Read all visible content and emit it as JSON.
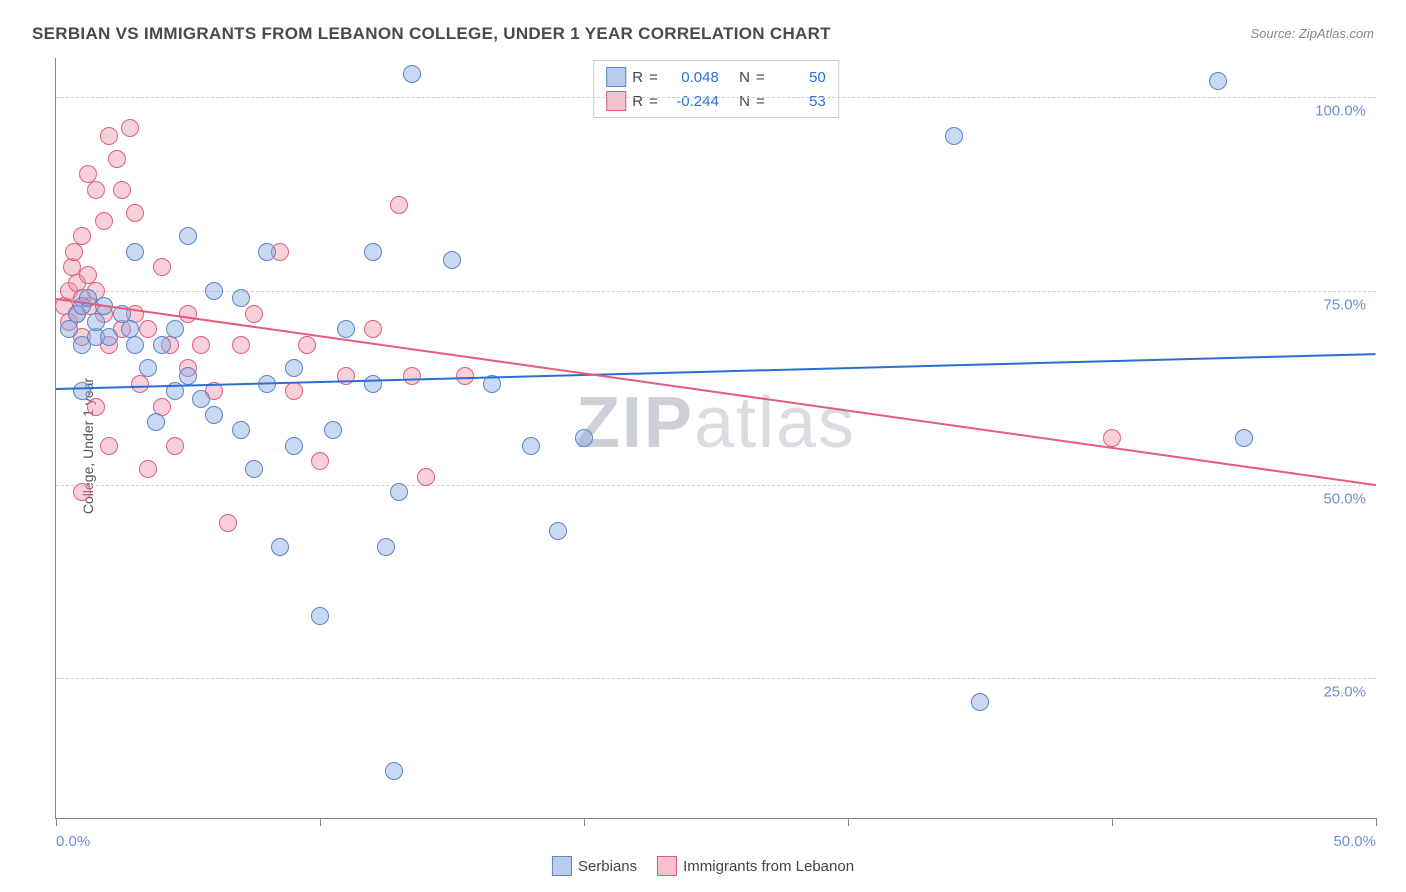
{
  "title": "SERBIAN VS IMMIGRANTS FROM LEBANON COLLEGE, UNDER 1 YEAR CORRELATION CHART",
  "source": "Source: ZipAtlas.com",
  "ylabel": "College, Under 1 year",
  "watermark_a": "ZIP",
  "watermark_b": "atlas",
  "chart": {
    "type": "scatter",
    "xlim": [
      0,
      50
    ],
    "ylim": [
      7,
      105
    ],
    "yticks": [
      25,
      50,
      75,
      100
    ],
    "ytick_labels": [
      "25.0%",
      "50.0%",
      "75.0%",
      "100.0%"
    ],
    "xticks": [
      0,
      10,
      20,
      30,
      40,
      50
    ],
    "xtick_labels": {
      "0": "0.0%",
      "50": "50.0%"
    },
    "background": "#ffffff",
    "grid_color": "#d0d0d0",
    "grid_dash": true,
    "axis_color": "#888888"
  },
  "series": {
    "blue": {
      "name": "Serbians",
      "fill": "rgba(137,171,226,0.45)",
      "stroke": "#5a85c9",
      "marker_radius": 8,
      "R": "0.048",
      "N": "50",
      "trend": {
        "x1": 0,
        "y1": 62.5,
        "x2": 50,
        "y2": 67,
        "color": "#2a6fd6",
        "width": 2
      },
      "points": [
        [
          0.5,
          70
        ],
        [
          0.8,
          72
        ],
        [
          1.0,
          68
        ],
        [
          1.0,
          73
        ],
        [
          1.2,
          74
        ],
        [
          1.5,
          69
        ],
        [
          1.5,
          71
        ],
        [
          1.8,
          73
        ],
        [
          2.0,
          69
        ],
        [
          1.0,
          62
        ],
        [
          2.5,
          72
        ],
        [
          2.8,
          70
        ],
        [
          3.0,
          68
        ],
        [
          3.0,
          80
        ],
        [
          3.5,
          65
        ],
        [
          3.8,
          58
        ],
        [
          4.0,
          68
        ],
        [
          4.5,
          70
        ],
        [
          4.5,
          62
        ],
        [
          5.0,
          82
        ],
        [
          5.0,
          64
        ],
        [
          5.5,
          61
        ],
        [
          6.0,
          75
        ],
        [
          6.0,
          59
        ],
        [
          7.0,
          74
        ],
        [
          7.0,
          57
        ],
        [
          7.5,
          52
        ],
        [
          8.0,
          63
        ],
        [
          8.0,
          80
        ],
        [
          8.5,
          42
        ],
        [
          9.0,
          65
        ],
        [
          9.0,
          55
        ],
        [
          10.0,
          33
        ],
        [
          10.5,
          57
        ],
        [
          11.0,
          70
        ],
        [
          12.0,
          80
        ],
        [
          12.0,
          63
        ],
        [
          12.5,
          42
        ],
        [
          12.8,
          13
        ],
        [
          13.0,
          49
        ],
        [
          13.5,
          103
        ],
        [
          15.0,
          79
        ],
        [
          16.5,
          63
        ],
        [
          18.0,
          55
        ],
        [
          19.0,
          44
        ],
        [
          20.0,
          56
        ],
        [
          34.0,
          95
        ],
        [
          35.0,
          22
        ],
        [
          44.0,
          102
        ],
        [
          45.0,
          56
        ]
      ]
    },
    "pink": {
      "name": "Immigrants from Lebanon",
      "fill": "rgba(240,150,170,0.45)",
      "stroke": "#de5f7e",
      "marker_radius": 8,
      "R": "-0.244",
      "N": "53",
      "trend": {
        "x1": 0,
        "y1": 74,
        "x2": 50,
        "y2": 50,
        "color": "#e85a7f",
        "width": 2
      },
      "points": [
        [
          0.3,
          73
        ],
        [
          0.5,
          75
        ],
        [
          0.5,
          71
        ],
        [
          0.6,
          78
        ],
        [
          0.7,
          80
        ],
        [
          0.8,
          76
        ],
        [
          0.8,
          72
        ],
        [
          1.0,
          74
        ],
        [
          1.0,
          82
        ],
        [
          1.0,
          69
        ],
        [
          1.0,
          49
        ],
        [
          1.2,
          77
        ],
        [
          1.2,
          90
        ],
        [
          1.3,
          73
        ],
        [
          1.5,
          75
        ],
        [
          1.5,
          88
        ],
        [
          1.5,
          60
        ],
        [
          1.8,
          72
        ],
        [
          1.8,
          84
        ],
        [
          2.0,
          95
        ],
        [
          2.0,
          68
        ],
        [
          2.0,
          55
        ],
        [
          2.3,
          92
        ],
        [
          2.5,
          70
        ],
        [
          2.5,
          88
        ],
        [
          2.8,
          96
        ],
        [
          3.0,
          72
        ],
        [
          3.0,
          85
        ],
        [
          3.2,
          63
        ],
        [
          3.5,
          70
        ],
        [
          3.5,
          52
        ],
        [
          4.0,
          78
        ],
        [
          4.0,
          60
        ],
        [
          4.3,
          68
        ],
        [
          4.5,
          55
        ],
        [
          5.0,
          65
        ],
        [
          5.0,
          72
        ],
        [
          5.5,
          68
        ],
        [
          6.0,
          62
        ],
        [
          6.5,
          45
        ],
        [
          7.0,
          68
        ],
        [
          7.5,
          72
        ],
        [
          8.5,
          80
        ],
        [
          9.0,
          62
        ],
        [
          9.5,
          68
        ],
        [
          10.0,
          53
        ],
        [
          11.0,
          64
        ],
        [
          12.0,
          70
        ],
        [
          13.0,
          86
        ],
        [
          13.5,
          64
        ],
        [
          14.0,
          51
        ],
        [
          15.5,
          64
        ],
        [
          40.0,
          56
        ]
      ]
    }
  },
  "stats_legend": {
    "rows": [
      {
        "swatch": "blue",
        "R_label": "R",
        "R_value": "0.048",
        "N_label": "N",
        "N_value": "50"
      },
      {
        "swatch": "pink",
        "R_label": "R",
        "R_value": "-0.244",
        "N_label": "N",
        "N_value": "53"
      }
    ]
  },
  "bottom_legend": [
    {
      "swatch": "blue",
      "label": "Serbians"
    },
    {
      "swatch": "pink",
      "label": "Immigrants from Lebanon"
    }
  ]
}
